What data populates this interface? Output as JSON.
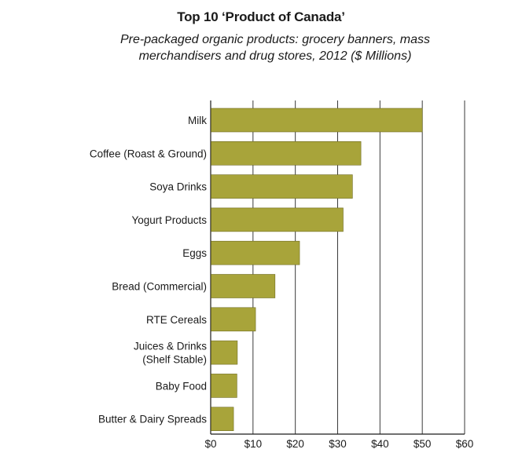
{
  "chart_data": {
    "type": "bar",
    "orientation": "horizontal",
    "title": "Top 10 ‘Product of Canada’",
    "subtitle": "Pre-packaged organic products: grocery banners, mass merchandisers and drug stores, 2012 ($ Millions)",
    "xlabel": "",
    "ylabel": "",
    "categories": [
      [
        "Milk"
      ],
      [
        "Coffee (Roast & Ground)"
      ],
      [
        "Soya Drinks"
      ],
      [
        "Yogurt Products"
      ],
      [
        "Eggs"
      ],
      [
        "Bread (Commercial)"
      ],
      [
        "RTE Cereals"
      ],
      [
        "Juices & Drinks",
        "(Shelf Stable)"
      ],
      [
        "Baby Food"
      ],
      [
        "Butter & Dairy Spreads"
      ]
    ],
    "values": [
      50,
      35.5,
      33.5,
      31.3,
      21,
      15.2,
      10.6,
      6.3,
      6.2,
      5.4
    ],
    "xlim": [
      0,
      60
    ],
    "ticks": [
      {
        "value": 0,
        "label": "$0"
      },
      {
        "value": 10,
        "label": "$10"
      },
      {
        "value": 20,
        "label": "$20"
      },
      {
        "value": 30,
        "label": "$30"
      },
      {
        "value": 40,
        "label": "$40"
      },
      {
        "value": 50,
        "label": "$50"
      },
      {
        "value": 60,
        "label": "$60"
      }
    ],
    "grid": true,
    "bar_color": "#a8a43a",
    "bar_edge_color": "#6f6c22",
    "grid_color": "#3a3a3a"
  }
}
